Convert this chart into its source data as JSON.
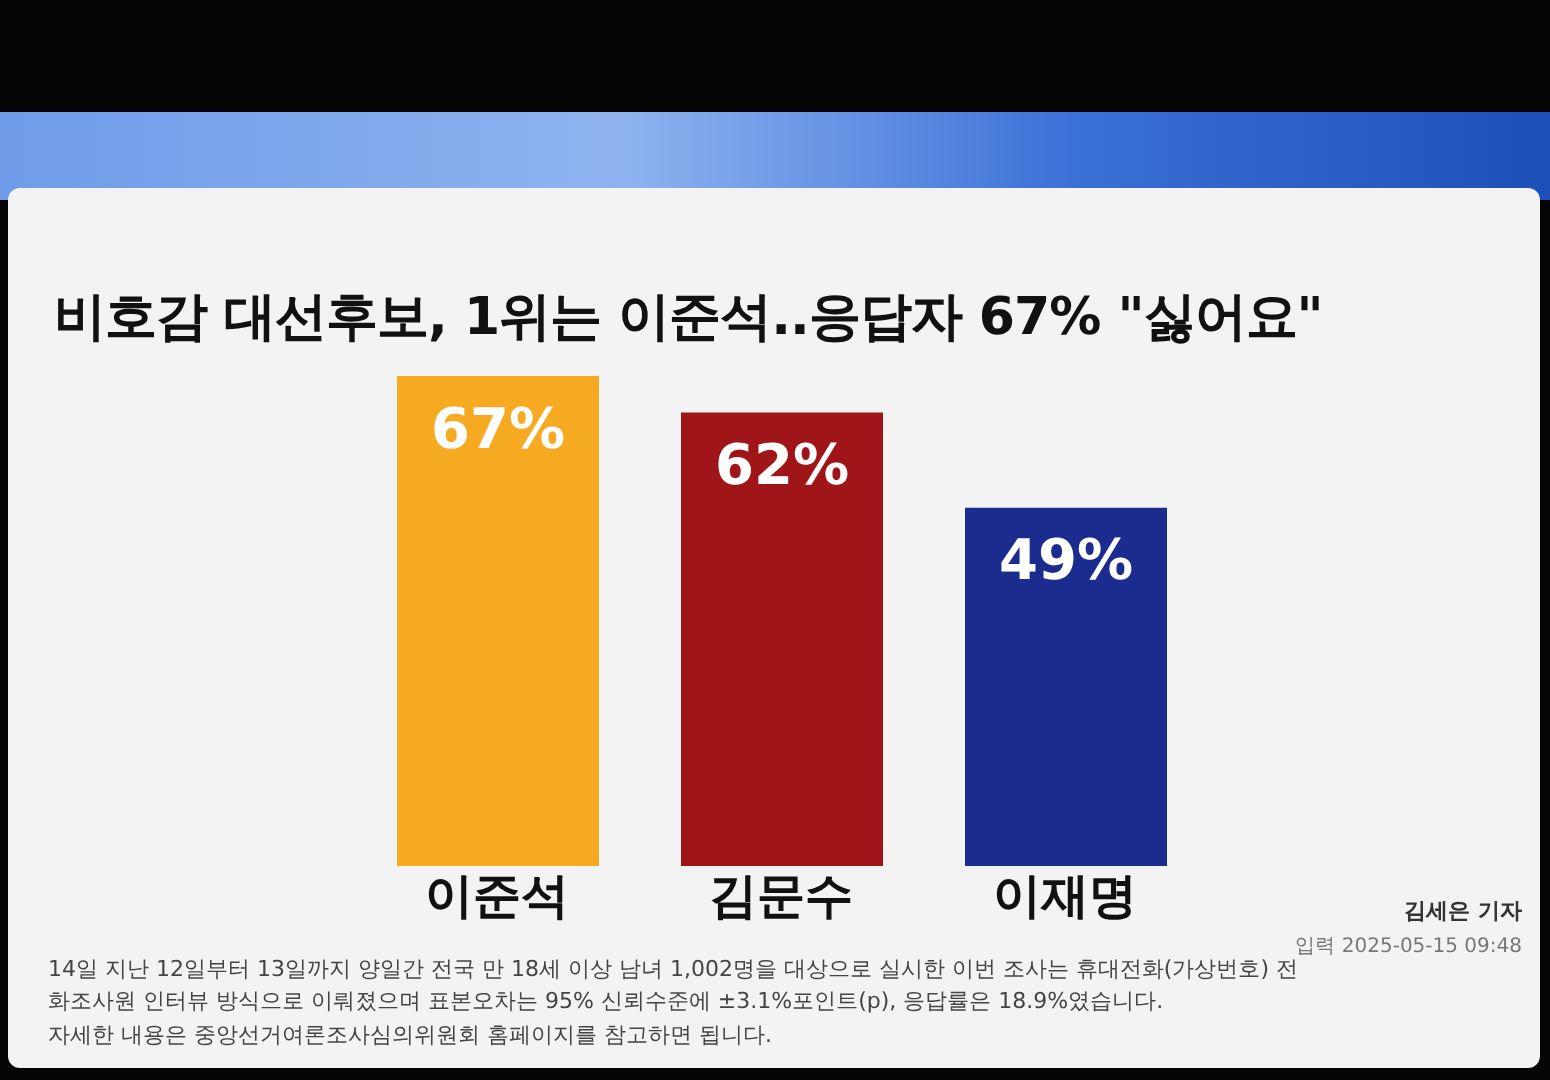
{
  "chart_data": {
    "type": "bar",
    "title": "비호감 대선후보, 1위는 이준석..응답자 67% \"싫어요\"",
    "categories": [
      "이준석",
      "김문수",
      "이재명"
    ],
    "values": [
      67,
      62,
      49
    ],
    "value_labels": [
      "67%",
      "62%",
      "49%"
    ],
    "colors": [
      "#f6aa22",
      "#a01618",
      "#1b2b8e"
    ],
    "tick_labels": "x",
    "annotations": [
      "14일 지난 12일부터 13일까지 양일간 전국 만 18세 이상 남녀 1,002명을 대상으로 실시한 이번 조사는 휴대전화(가상번호) 전화조사원 인터뷰 방식으로 이뤄졌으며 표본오차는 95% 신뢰수준에 ±3.1%포인트(p), 응답률은 18.9%였습니다.",
      "자세한 내용은 중앙선거여론조사심의위원회 홈페이지를 참고하면 됩니다.",
      "김세은 기자",
      "입력 2025-05-15 09:48"
    ]
  }
}
